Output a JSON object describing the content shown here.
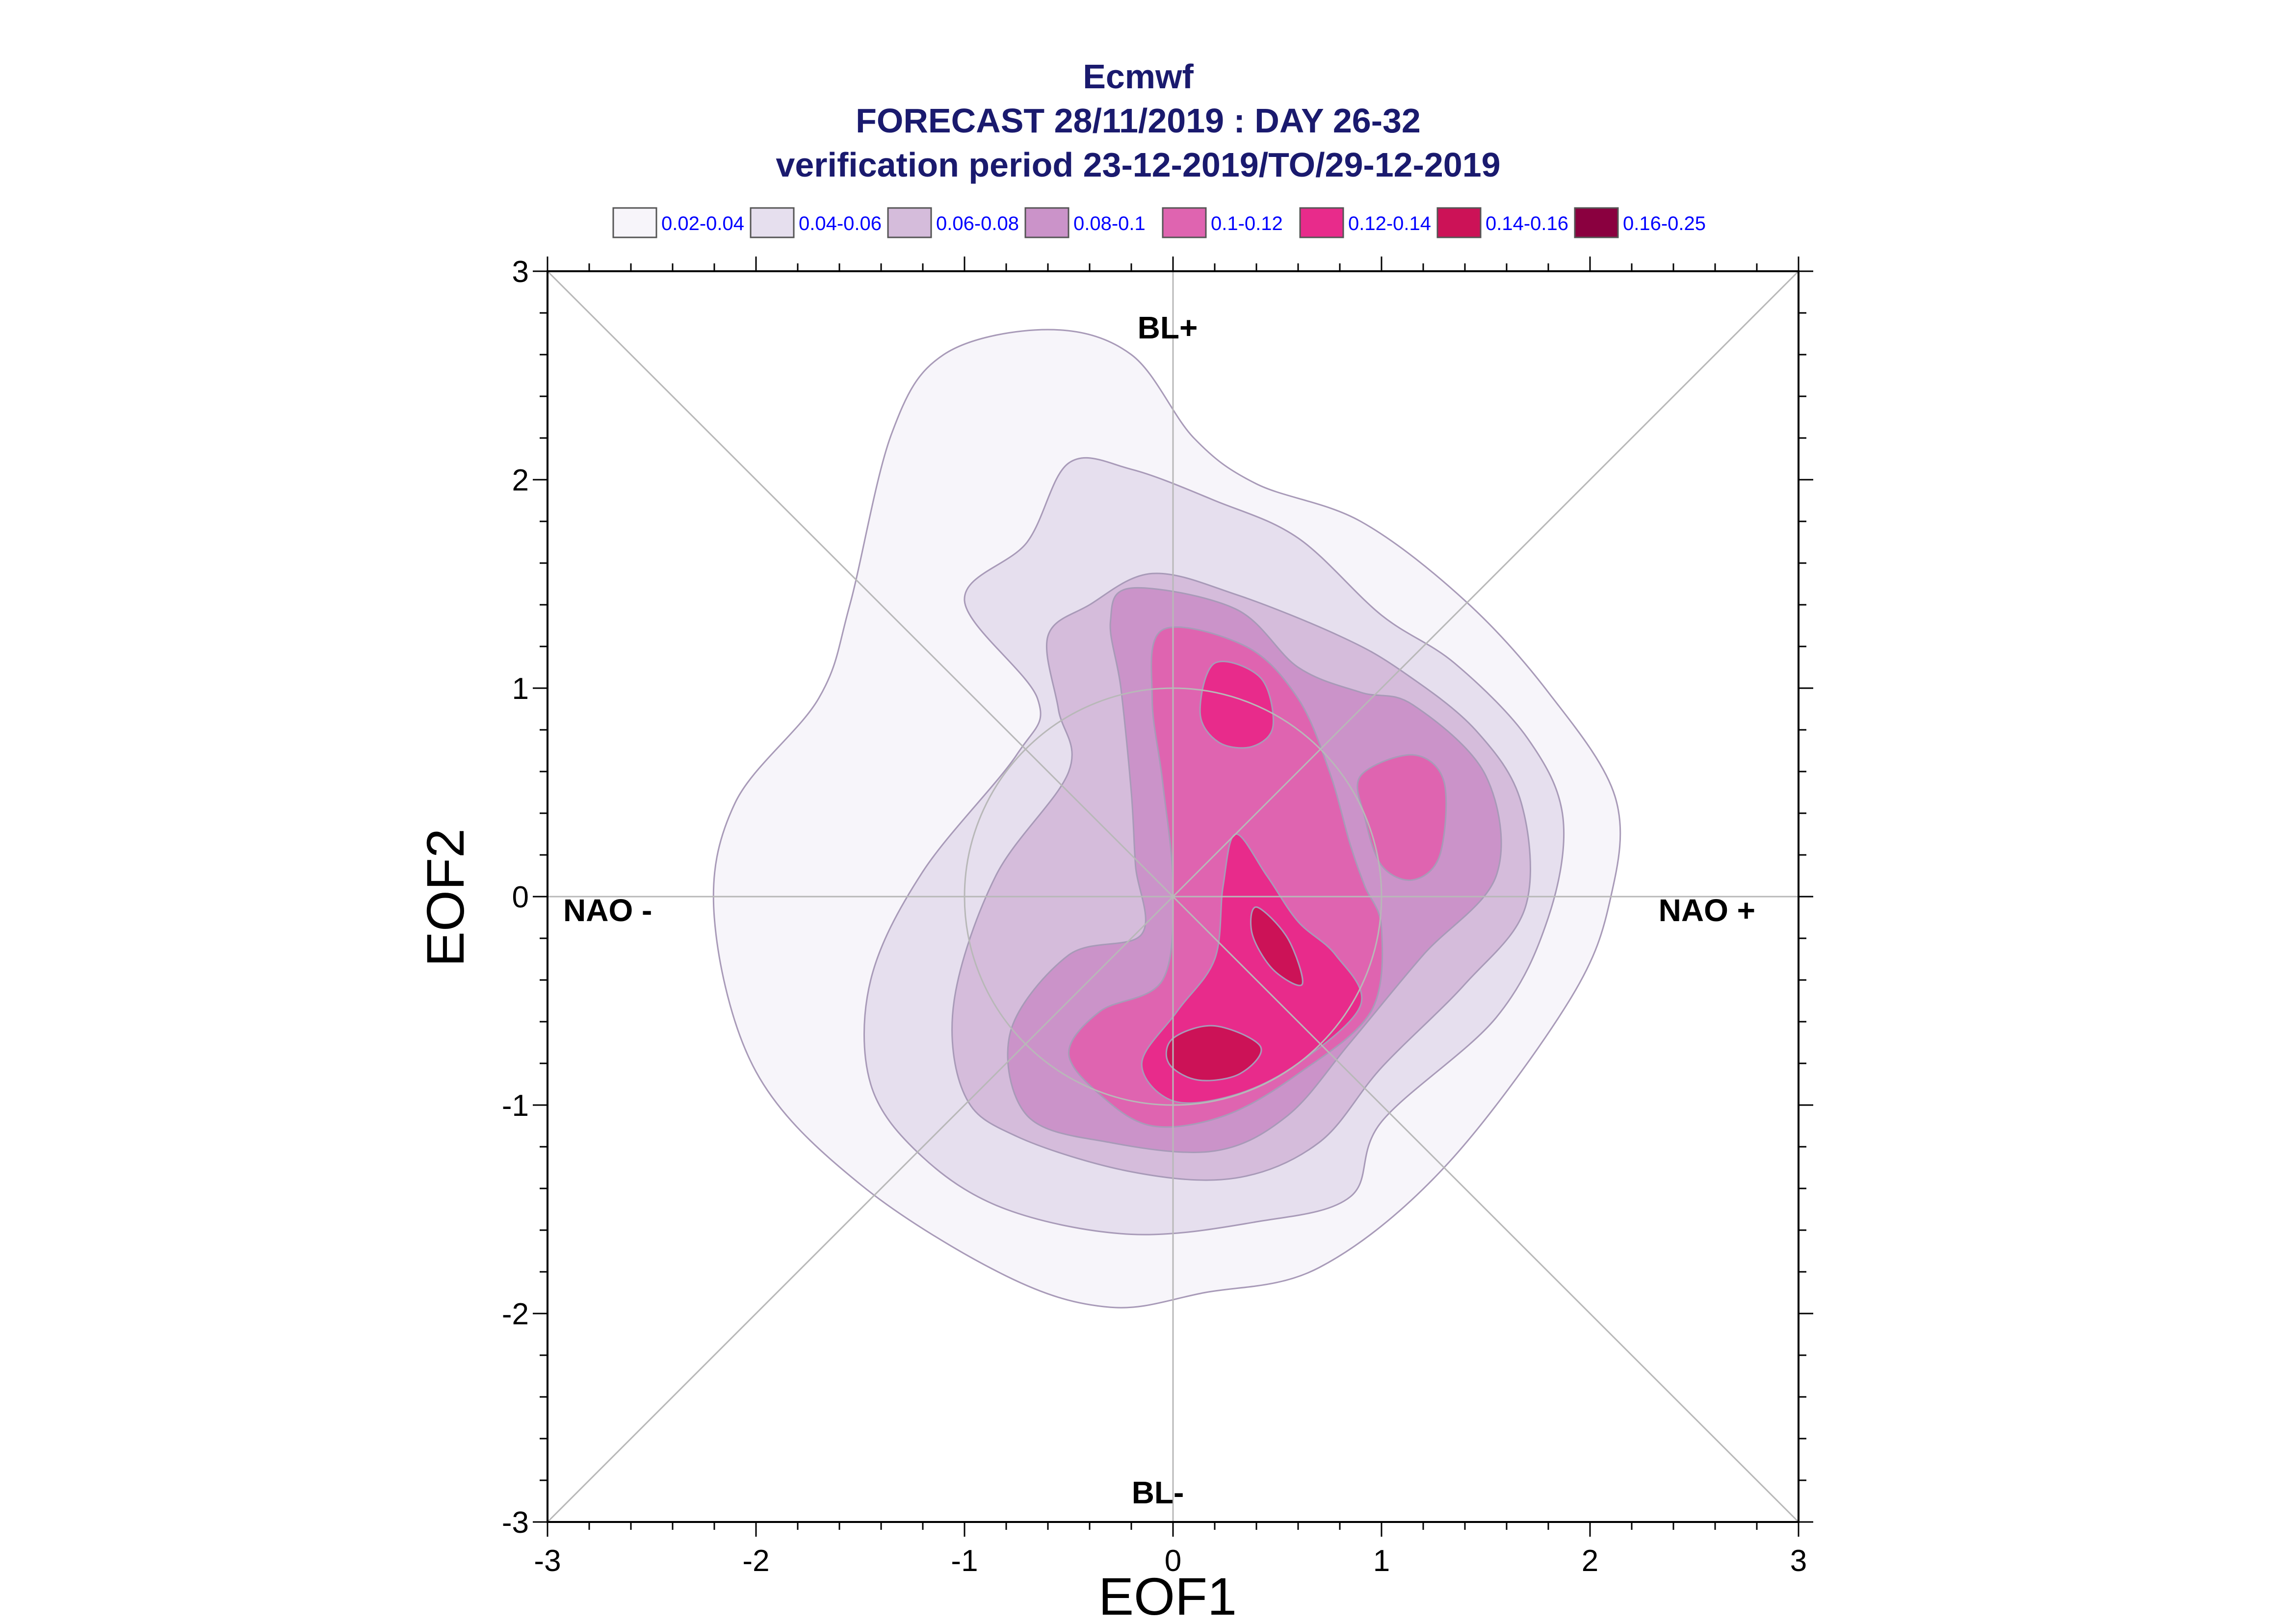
{
  "chart_data": {
    "type": "contour",
    "title_lines": [
      "Ecmwf",
      "FORECAST 28/11/2019 : DAY 26-32",
      "verification period 23-12-2019/TO/29-12-2019"
    ],
    "xlabel": "EOF1",
    "ylabel": "EOF2",
    "xlim": [
      -3,
      3
    ],
    "ylim": [
      -3,
      3
    ],
    "x_ticks": [
      "-3",
      "-2",
      "-1",
      "0",
      "1",
      "2",
      "3"
    ],
    "y_ticks": [
      "-3",
      "-2",
      "-1",
      "0",
      "1",
      "2",
      "3"
    ],
    "regime_labels": {
      "top": "BL+",
      "bottom": "BL-",
      "left": "NAO -",
      "right": "NAO +"
    },
    "legend": [
      {
        "label": "0.02-0.04",
        "color": "#f7f5fa"
      },
      {
        "label": "0.04-0.06",
        "color": "#e6dfee"
      },
      {
        "label": "0.06-0.08",
        "color": "#d5bcdb"
      },
      {
        "label": "0.08-0.1",
        "color": "#cb93c9"
      },
      {
        "label": "0.1-0.12",
        "color": "#df64b0"
      },
      {
        "label": "0.12-0.14",
        "color": "#e82b8b"
      },
      {
        "label": "0.14-0.16",
        "color": "#cc1257"
      },
      {
        "label": "0.16-0.25",
        "color": "#8a003f"
      }
    ],
    "contours": [
      {
        "level": 0,
        "points": [
          [
            -0.6,
            2.72
          ],
          [
            -0.2,
            2.6
          ],
          [
            0.1,
            2.2
          ],
          [
            0.4,
            1.98
          ],
          [
            0.9,
            1.8
          ],
          [
            1.4,
            1.42
          ],
          [
            1.8,
            0.98
          ],
          [
            2.12,
            0.48
          ],
          [
            2.1,
            0.0
          ],
          [
            1.9,
            -0.5
          ],
          [
            1.3,
            -1.3
          ],
          [
            0.7,
            -1.78
          ],
          [
            0.15,
            -1.9
          ],
          [
            -0.3,
            -1.97
          ],
          [
            -0.8,
            -1.82
          ],
          [
            -1.5,
            -1.38
          ],
          [
            -2.0,
            -0.84
          ],
          [
            -2.2,
            -0.1
          ],
          [
            -2.1,
            0.45
          ],
          [
            -1.7,
            0.95
          ],
          [
            -1.55,
            1.4
          ],
          [
            -1.35,
            2.22
          ],
          [
            -1.1,
            2.6
          ]
        ]
      },
      {
        "level": 1,
        "points": [
          [
            -0.7,
            1.7
          ],
          [
            -0.5,
            2.08
          ],
          [
            -0.2,
            2.05
          ],
          [
            0.2,
            1.9
          ],
          [
            0.6,
            1.72
          ],
          [
            1.0,
            1.35
          ],
          [
            1.35,
            1.12
          ],
          [
            1.7,
            0.76
          ],
          [
            1.87,
            0.38
          ],
          [
            1.8,
            -0.1
          ],
          [
            1.55,
            -0.58
          ],
          [
            1.0,
            -1.08
          ],
          [
            0.85,
            -1.44
          ],
          [
            0.4,
            -1.56
          ],
          [
            -0.2,
            -1.62
          ],
          [
            -0.8,
            -1.5
          ],
          [
            -1.2,
            -1.25
          ],
          [
            -1.45,
            -0.9
          ],
          [
            -1.45,
            -0.4
          ],
          [
            -1.2,
            0.12
          ],
          [
            -0.75,
            0.68
          ],
          [
            -0.65,
            0.95
          ],
          [
            -1.0,
            1.42
          ]
        ]
      },
      {
        "level": 2,
        "points": [
          [
            -0.4,
            1.4
          ],
          [
            -0.1,
            1.55
          ],
          [
            0.3,
            1.45
          ],
          [
            0.8,
            1.25
          ],
          [
            1.1,
            1.08
          ],
          [
            1.45,
            0.8
          ],
          [
            1.67,
            0.45
          ],
          [
            1.69,
            -0.05
          ],
          [
            1.4,
            -0.42
          ],
          [
            1.0,
            -0.82
          ],
          [
            0.7,
            -1.18
          ],
          [
            0.3,
            -1.35
          ],
          [
            -0.2,
            -1.32
          ],
          [
            -0.75,
            -1.15
          ],
          [
            -1.0,
            -0.95
          ],
          [
            -1.05,
            -0.5
          ],
          [
            -0.85,
            0.1
          ],
          [
            -0.5,
            0.6
          ],
          [
            -0.55,
            0.9
          ],
          [
            -0.6,
            1.25
          ]
        ]
      },
      {
        "level": 3,
        "points": [
          [
            -0.2,
            1.48
          ],
          [
            0.3,
            1.38
          ],
          [
            0.6,
            1.1
          ],
          [
            0.9,
            0.98
          ],
          [
            1.15,
            0.92
          ],
          [
            1.5,
            0.58
          ],
          [
            1.55,
            0.1
          ],
          [
            1.2,
            -0.28
          ],
          [
            0.85,
            -0.7
          ],
          [
            0.55,
            -1.05
          ],
          [
            0.2,
            -1.22
          ],
          [
            -0.3,
            -1.18
          ],
          [
            -0.7,
            -1.05
          ],
          [
            -0.78,
            -0.65
          ],
          [
            -0.5,
            -0.28
          ],
          [
            -0.15,
            -0.18
          ],
          [
            -0.18,
            0.15
          ],
          [
            -0.2,
            0.5
          ],
          [
            -0.25,
            1.0
          ],
          [
            -0.3,
            1.32
          ]
        ]
      },
      {
        "level": 4,
        "points": [
          [
            -0.05,
            1.28
          ],
          [
            0.35,
            1.2
          ],
          [
            0.6,
            0.95
          ],
          [
            0.75,
            0.6
          ],
          [
            0.85,
            0.25
          ],
          [
            0.92,
            0.05
          ],
          [
            1.0,
            -0.15
          ],
          [
            0.95,
            -0.55
          ],
          [
            0.6,
            -0.85
          ],
          [
            0.25,
            -1.05
          ],
          [
            -0.1,
            -1.1
          ],
          [
            -0.35,
            -0.95
          ],
          [
            -0.5,
            -0.75
          ],
          [
            -0.35,
            -0.55
          ],
          [
            -0.05,
            -0.4
          ],
          [
            0.0,
            0.05
          ],
          [
            -0.05,
            0.55
          ],
          [
            -0.1,
            0.95
          ]
        ]
      },
      {
        "level": 4,
        "points": [
          [
            0.9,
            0.58
          ],
          [
            1.15,
            0.68
          ],
          [
            1.3,
            0.55
          ],
          [
            1.28,
            0.2
          ],
          [
            1.15,
            0.08
          ],
          [
            1.0,
            0.15
          ],
          [
            0.92,
            0.38
          ]
        ]
      },
      {
        "level": 5,
        "points": [
          [
            0.2,
            1.12
          ],
          [
            0.42,
            1.05
          ],
          [
            0.48,
            0.82
          ],
          [
            0.38,
            0.72
          ],
          [
            0.22,
            0.74
          ],
          [
            0.13,
            0.88
          ]
        ]
      },
      {
        "level": 5,
        "points": [
          [
            0.3,
            0.3
          ],
          [
            0.45,
            0.1
          ],
          [
            0.6,
            -0.12
          ],
          [
            0.78,
            -0.28
          ],
          [
            0.9,
            -0.52
          ],
          [
            0.6,
            -0.8
          ],
          [
            0.3,
            -0.95
          ],
          [
            0.0,
            -0.98
          ],
          [
            -0.15,
            -0.8
          ],
          [
            0.02,
            -0.55
          ],
          [
            0.2,
            -0.3
          ],
          [
            0.24,
            0.05
          ]
        ]
      },
      {
        "level": 6,
        "points": [
          [
            0.4,
            -0.05
          ],
          [
            0.55,
            -0.2
          ],
          [
            0.62,
            -0.42
          ],
          [
            0.48,
            -0.35
          ],
          [
            0.38,
            -0.18
          ]
        ]
      },
      {
        "level": 6,
        "points": [
          [
            0.0,
            -0.68
          ],
          [
            0.2,
            -0.62
          ],
          [
            0.42,
            -0.72
          ],
          [
            0.32,
            -0.85
          ],
          [
            0.12,
            -0.88
          ],
          [
            -0.02,
            -0.8
          ]
        ]
      }
    ]
  }
}
